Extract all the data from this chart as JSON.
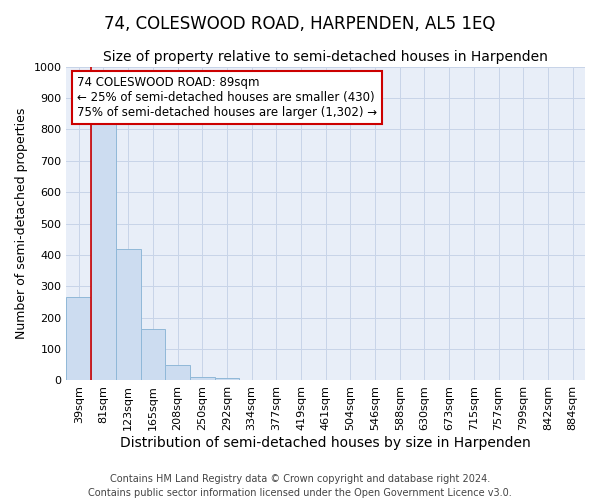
{
  "title": "74, COLESWOOD ROAD, HARPENDEN, AL5 1EQ",
  "subtitle": "Size of property relative to semi-detached houses in Harpenden",
  "xlabel": "Distribution of semi-detached houses by size in Harpenden",
  "ylabel": "Number of semi-detached properties",
  "footer_line1": "Contains HM Land Registry data © Crown copyright and database right 2024.",
  "footer_line2": "Contains public sector information licensed under the Open Government Licence v3.0.",
  "bar_labels": [
    "39sqm",
    "81sqm",
    "123sqm",
    "165sqm",
    "208sqm",
    "250sqm",
    "292sqm",
    "334sqm",
    "377sqm",
    "419sqm",
    "461sqm",
    "504sqm",
    "546sqm",
    "588sqm",
    "630sqm",
    "673sqm",
    "715sqm",
    "757sqm",
    "799sqm",
    "842sqm",
    "884sqm"
  ],
  "bar_values": [
    265,
    825,
    420,
    165,
    50,
    10,
    8,
    0,
    0,
    0,
    0,
    0,
    0,
    0,
    0,
    0,
    0,
    0,
    0,
    0,
    0
  ],
  "bar_color": "#ccdcf0",
  "bar_edgecolor": "#90b8d8",
  "property_line_x": 0.5,
  "property_line_color": "#cc0000",
  "annotation_line1": "74 COLESWOOD ROAD: 89sqm",
  "annotation_line2": "← 25% of semi-detached houses are smaller (430)",
  "annotation_line3": "75% of semi-detached houses are larger (1,302) →",
  "annotation_box_color": "#ffffff",
  "annotation_box_edgecolor": "#cc0000",
  "ylim": [
    0,
    1000
  ],
  "yticks": [
    0,
    100,
    200,
    300,
    400,
    500,
    600,
    700,
    800,
    900,
    1000
  ],
  "grid_color": "#c8d4e8",
  "bg_color": "#e8eef8",
  "title_fontsize": 12,
  "subtitle_fontsize": 10,
  "xlabel_fontsize": 10,
  "ylabel_fontsize": 9,
  "tick_fontsize": 8,
  "annotation_fontsize": 8.5,
  "footer_fontsize": 7
}
